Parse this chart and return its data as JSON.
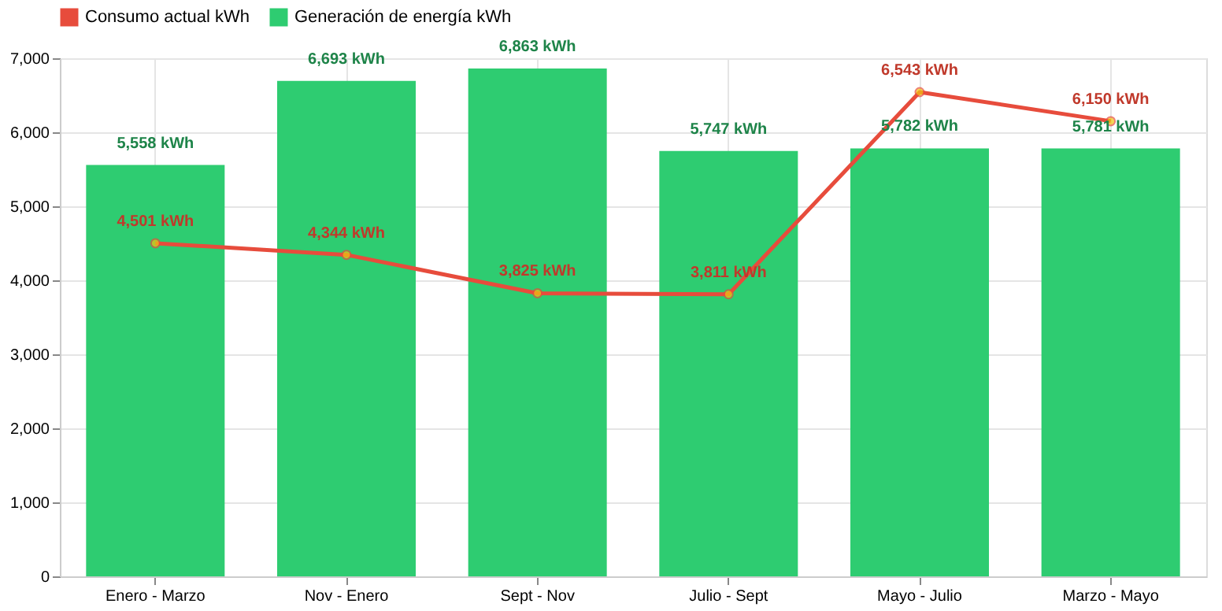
{
  "chart_data": {
    "type": "bar",
    "categories": [
      "Enero - Marzo",
      "Nov - Enero",
      "Sept - Nov",
      "Julio - Sept",
      "Mayo - Julio",
      "Marzo - Mayo"
    ],
    "series": [
      {
        "name": "Consumo actual kWh",
        "type": "line",
        "color": "#e74c3c",
        "marker": "circle",
        "values": [
          4501,
          4344,
          3825,
          3811,
          6543,
          6150
        ],
        "value_labels": [
          "4,501 kWh",
          "4,344 kWh",
          "3,825 kWh",
          "3,811 kWh",
          "6,543 kWh",
          "6,150 kWh"
        ]
      },
      {
        "name": "Generación de energía kWh",
        "color": "#2ecc71",
        "values": [
          5558,
          6693,
          6863,
          5747,
          5782,
          5781
        ],
        "value_labels": [
          "5,558 kWh",
          "6,693 kWh",
          "6,863 kWh",
          "5,747 kWh",
          "5,782 kWh",
          "5,781 kWh"
        ]
      }
    ],
    "ylim": [
      0,
      7000
    ],
    "yticks": [
      0,
      {
        "value": 1000,
        "label": "1,000"
      },
      {
        "value": 2000,
        "label": "2,000"
      },
      {
        "value": 3000,
        "label": "3,000"
      },
      {
        "value": 4000,
        "label": "4,000"
      },
      {
        "value": 5000,
        "label": "5,000"
      },
      {
        "value": 6000,
        "label": "6,000"
      },
      {
        "value": 7000,
        "label": "7,000"
      }
    ],
    "grid": true,
    "legend": "top"
  }
}
